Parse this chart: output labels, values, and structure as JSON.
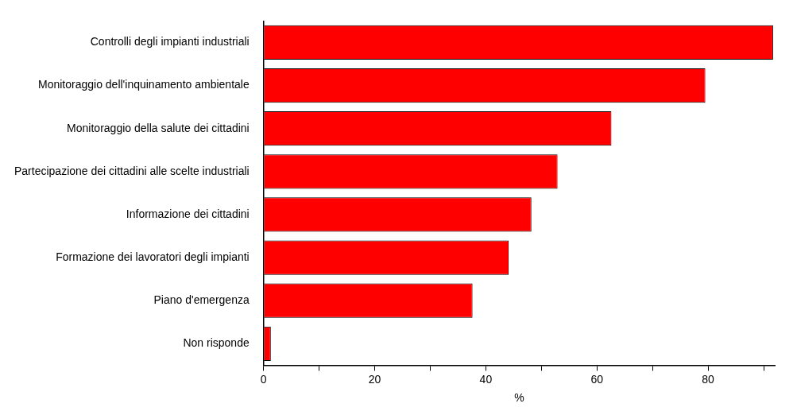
{
  "chart_data": {
    "type": "bar",
    "orientation": "horizontal",
    "xlabel": "%",
    "categories": [
      "Controlli degli impianti industriali",
      "Monitoraggio dell'inquinamento ambientale",
      "Monitoraggio della salute dei cittadini",
      "Partecipazione dei cittadini alle scelte industriali",
      "Informazione dei cittadini",
      "Formazione dei lavoratori degli impianti",
      "Piano d'emergenza",
      "Non risponde"
    ],
    "values": [
      91.7,
      79.5,
      62.6,
      52.9,
      48.2,
      44.1,
      37.6,
      1.3
    ],
    "color": "#ff0000",
    "xlim": [
      0,
      92
    ],
    "xticks": [
      0,
      {
        "value": 10,
        "label": null
      },
      20,
      {
        "value": 30,
        "label": null
      },
      40,
      {
        "value": 50,
        "label": null
      },
      60,
      {
        "value": 70,
        "label": null
      },
      80,
      {
        "value": 90,
        "label": null
      }
    ],
    "grid": false,
    "legend": false
  }
}
